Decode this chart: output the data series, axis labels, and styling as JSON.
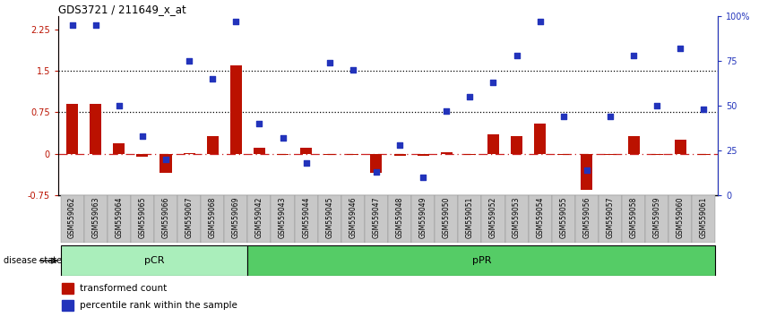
{
  "title": "GDS3721 / 211649_x_at",
  "samples": [
    "GSM559062",
    "GSM559063",
    "GSM559064",
    "GSM559065",
    "GSM559066",
    "GSM559067",
    "GSM559068",
    "GSM559069",
    "GSM559042",
    "GSM559043",
    "GSM559044",
    "GSM559045",
    "GSM559046",
    "GSM559047",
    "GSM559048",
    "GSM559049",
    "GSM559050",
    "GSM559051",
    "GSM559052",
    "GSM559053",
    "GSM559054",
    "GSM559055",
    "GSM559056",
    "GSM559057",
    "GSM559058",
    "GSM559059",
    "GSM559060",
    "GSM559061"
  ],
  "red_values": [
    0.9,
    0.9,
    0.18,
    -0.05,
    -0.35,
    0.01,
    0.32,
    1.6,
    0.1,
    -0.03,
    0.1,
    -0.02,
    -0.03,
    -0.35,
    -0.04,
    -0.04,
    0.02,
    -0.02,
    0.35,
    0.32,
    0.55,
    -0.02,
    -0.65,
    -0.03,
    0.32,
    -0.03,
    0.25,
    -0.02
  ],
  "blue_values": [
    95,
    95,
    50,
    33,
    20,
    75,
    65,
    97,
    40,
    32,
    18,
    74,
    70,
    13,
    28,
    10,
    47,
    55,
    63,
    78,
    97,
    44,
    14,
    44,
    78,
    50,
    82,
    48
  ],
  "pCR_count": 8,
  "left_ylim": [
    -0.75,
    2.5
  ],
  "right_ylim": [
    0,
    100
  ],
  "left_yticks": [
    -0.75,
    0,
    0.75,
    1.5,
    2.25
  ],
  "right_yticks": [
    0,
    25,
    50,
    75,
    100
  ],
  "right_yticklabels": [
    "0",
    "25",
    "50",
    "75",
    "100%"
  ],
  "hlines": [
    0.75,
    1.5
  ],
  "bar_color": "#BB1100",
  "dot_color": "#2233BB",
  "pCR_color": "#AAEEBB",
  "pPR_color": "#55CC66",
  "zero_line_color": "#CC2222",
  "legend_bar": "transformed count",
  "legend_dot": "percentile rank within the sample",
  "disease_state_label": "disease state",
  "pCR_label": "pCR",
  "pPR_label": "pPR"
}
